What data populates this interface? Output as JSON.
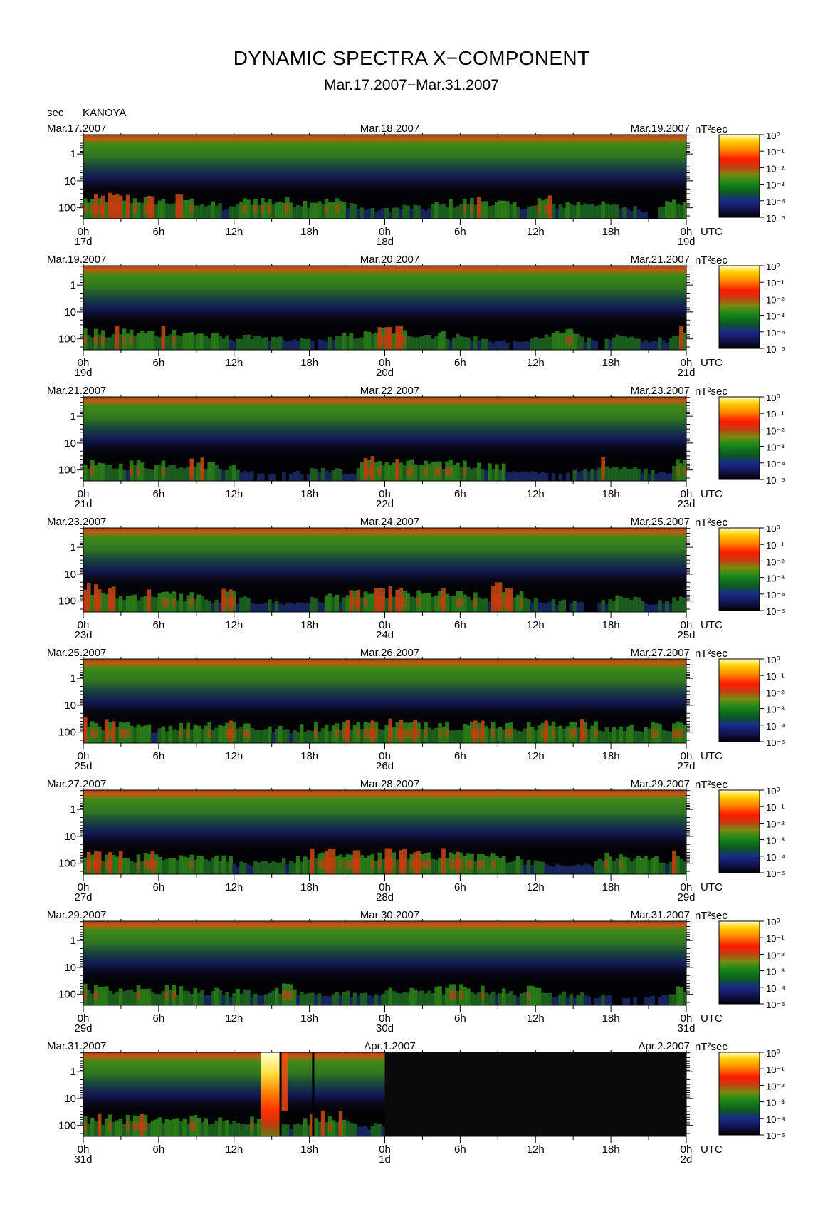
{
  "title": "DYNAMIC SPECTRA X−COMPONENT",
  "subtitle": "Mar.17.2007−Mar.31.2007",
  "station": "KANOYA",
  "y_unit": "sec",
  "colorbar_unit": "nT²sec",
  "time_unit": "UTC",
  "chart_data": {
    "type": "heatmap",
    "title": "DYNAMIC SPECTRA X−COMPONENT",
    "subtitle": "Mar.17.2007−Mar.31.2007",
    "station": "KANOYA",
    "ylabel": "sec",
    "y_scale": "log",
    "y_ticks": [
      "1",
      "10",
      "100"
    ],
    "x_ticks": [
      "0h",
      "6h",
      "12h",
      "18h",
      "0h",
      "6h",
      "12h",
      "18h",
      "0h"
    ],
    "x_unit": "UTC",
    "colorbar": {
      "unit": "nT²sec",
      "scale": "log",
      "ticks": [
        "10⁰",
        "10⁻¹",
        "10⁻²",
        "10⁻³",
        "10⁻⁴",
        "10⁻⁵"
      ],
      "colors": [
        "#ffffe0",
        "#ffd000",
        "#ff2000",
        "#8a8a10",
        "#108010",
        "#101060",
        "#000000"
      ]
    },
    "panels": [
      {
        "start_label": "Mar.17.2007",
        "mid_label": "Mar.18.2007",
        "end_label": "Mar.19.2007",
        "day_labels": [
          "17d",
          "18d",
          "19d"
        ],
        "activity": [
          0.55,
          0.62,
          0.6,
          0.58,
          0.55,
          0.5,
          0.58,
          0.5,
          0.4,
          0.3,
          0.5,
          0.55,
          0.52,
          0.5,
          0.48,
          0.55,
          0.5,
          0.45,
          0.3,
          0.25,
          0.3,
          0.35,
          0.3,
          0.4,
          0.45,
          0.5,
          0.55,
          0.45,
          0.4,
          0.35,
          0.55,
          0.4,
          0.45,
          0.5,
          0.4,
          0.35,
          0.3,
          0.2,
          0.45,
          0.5
        ],
        "events": []
      },
      {
        "start_label": "Mar.19.2007",
        "mid_label": "Mar.20.2007",
        "end_label": "Mar.21.2007",
        "day_labels": [
          "19d",
          "20d",
          "21d"
        ],
        "activity": [
          0.5,
          0.45,
          0.55,
          0.5,
          0.5,
          0.6,
          0.45,
          0.5,
          0.4,
          0.35,
          0.35,
          0.45,
          0.3,
          0.25,
          0.3,
          0.25,
          0.35,
          0.4,
          0.45,
          0.55,
          0.6,
          0.5,
          0.45,
          0.45,
          0.4,
          0.35,
          0.3,
          0.25,
          0.2,
          0.3,
          0.35,
          0.5,
          0.55,
          0.3,
          0.25,
          0.35,
          0.3,
          0.25,
          0.3,
          0.55
        ],
        "events": []
      },
      {
        "start_label": "Mar.21.2007",
        "mid_label": "Mar.22.2007",
        "end_label": "Mar.23.2007",
        "day_labels": [
          "21d",
          "22d",
          "23d"
        ],
        "activity": [
          0.5,
          0.4,
          0.45,
          0.5,
          0.45,
          0.55,
          0.5,
          0.55,
          0.5,
          0.4,
          0.3,
          0.25,
          0.2,
          0.2,
          0.25,
          0.3,
          0.35,
          0.2,
          0.55,
          0.6,
          0.55,
          0.5,
          0.5,
          0.45,
          0.55,
          0.5,
          0.45,
          0.4,
          0.3,
          0.25,
          0.2,
          0.2,
          0.25,
          0.3,
          0.55,
          0.45,
          0.35,
          0.3,
          0.3,
          0.5
        ],
        "events": []
      },
      {
        "start_label": "Mar.23.2007",
        "mid_label": "Mar.24.2007",
        "end_label": "Mar.25.2007",
        "day_labels": [
          "23d",
          "24d",
          "25d"
        ],
        "activity": [
          0.7,
          0.6,
          0.45,
          0.5,
          0.55,
          0.5,
          0.45,
          0.5,
          0.3,
          0.55,
          0.35,
          0.3,
          0.3,
          0.25,
          0.3,
          0.35,
          0.45,
          0.5,
          0.55,
          0.55,
          0.6,
          0.5,
          0.5,
          0.55,
          0.5,
          0.45,
          0.4,
          0.7,
          0.6,
          0.4,
          0.3,
          0.3,
          0.25,
          0.2,
          0.3,
          0.4,
          0.35,
          0.3,
          0.3,
          0.4
        ],
        "events": []
      },
      {
        "start_label": "Mar.25.2007",
        "mid_label": "Mar.26.2007",
        "end_label": "Mar.27.2007",
        "day_labels": [
          "25d",
          "26d",
          "27d"
        ],
        "activity": [
          0.6,
          0.55,
          0.5,
          0.45,
          0.45,
          0.5,
          0.5,
          0.55,
          0.55,
          0.6,
          0.55,
          0.45,
          0.4,
          0.4,
          0.45,
          0.5,
          0.5,
          0.55,
          0.6,
          0.55,
          0.6,
          0.55,
          0.6,
          0.6,
          0.55,
          0.55,
          0.6,
          0.55,
          0.5,
          0.5,
          0.55,
          0.5,
          0.65,
          0.5,
          0.4,
          0.45,
          0.45,
          0.5,
          0.45,
          0.5
        ],
        "events": []
      },
      {
        "start_label": "Mar.27.2007",
        "mid_label": "Mar.28.2007",
        "end_label": "Mar.29.2007",
        "day_labels": [
          "27d",
          "28d",
          "29d"
        ],
        "activity": [
          0.6,
          0.55,
          0.55,
          0.5,
          0.55,
          0.6,
          0.55,
          0.5,
          0.55,
          0.45,
          0.3,
          0.3,
          0.3,
          0.4,
          0.5,
          0.6,
          0.6,
          0.55,
          0.6,
          0.55,
          0.6,
          0.6,
          0.65,
          0.6,
          0.6,
          0.55,
          0.55,
          0.5,
          0.45,
          0.4,
          0.3,
          0.25,
          0.25,
          0.3,
          0.5,
          0.5,
          0.45,
          0.45,
          0.4,
          0.55
        ],
        "events": []
      },
      {
        "start_label": "Mar.29.2007",
        "mid_label": "Mar.30.2007",
        "end_label": "Mar.31.2007",
        "day_labels": [
          "29d",
          "30d",
          "31d"
        ],
        "activity": [
          0.5,
          0.45,
          0.4,
          0.5,
          0.45,
          0.5,
          0.45,
          0.5,
          0.4,
          0.35,
          0.4,
          0.35,
          0.4,
          0.5,
          0.35,
          0.3,
          0.35,
          0.35,
          0.3,
          0.35,
          0.4,
          0.4,
          0.45,
          0.45,
          0.5,
          0.45,
          0.45,
          0.4,
          0.35,
          0.45,
          0.5,
          0.35,
          0.3,
          0.25,
          0.25,
          0.2,
          0.2,
          0.25,
          0.3,
          0.45
        ],
        "events": []
      },
      {
        "start_label": "Mar.31.2007",
        "mid_label": "Apr.1.2007",
        "end_label": "Apr.2.2007",
        "day_labels": [
          "31d",
          "1d",
          "2d"
        ],
        "activity": [
          0.55,
          0.5,
          0.5,
          0.55,
          0.5,
          0.45,
          0.55,
          0.5,
          0.45,
          0.4,
          0.5,
          0.5,
          0.45,
          0.3,
          0.5,
          0.6,
          0.6,
          0.4,
          0.3,
          0.4,
          0.35,
          0.3,
          0.25,
          0.3,
          0.35,
          0.4,
          0.4,
          0.45,
          0.45,
          0.5,
          0.5,
          0.4,
          0.35,
          0.3,
          0.3,
          0.3,
          0.3,
          0.3,
          0.3,
          0.3
        ],
        "events": [
          {
            "hour": 14.9,
            "intensity": 1.0
          }
        ],
        "gaps_hours": [
          15.7,
          18.3
        ],
        "no_data_from_hour": 24
      }
    ]
  }
}
